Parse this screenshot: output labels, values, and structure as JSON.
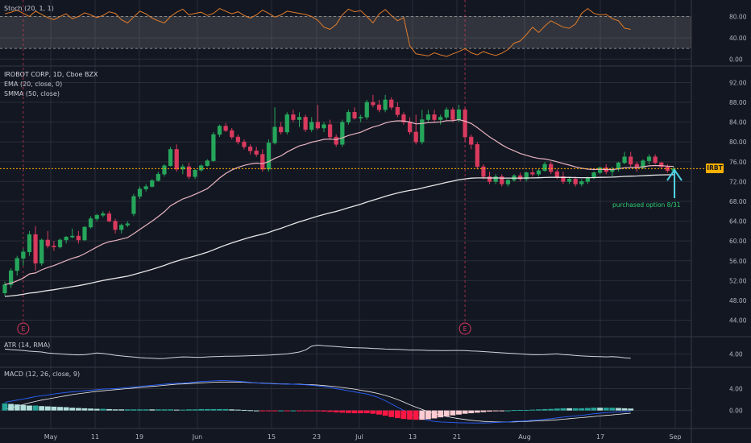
{
  "ticker_tag": "IRBT",
  "annotation": "purchased option 8/31",
  "panes": {
    "stoch_label": "Stoch (20, 1, 1)",
    "main_title": "IROBOT CORP, 1D, Cboe BZX",
    "ema_label": "EMA (20, close, 0)",
    "smma_label": "SMMA (50, close)",
    "atr_label": "ATR (14, RMA)",
    "macd_label": "MACD (12, 26, close, 9)"
  },
  "colors": {
    "background": "#131722",
    "grid": "#2a2e39",
    "up": "#26a65b",
    "down": "#d93a5e",
    "ema": "#e8b4c0",
    "smma": "#e6e6e6",
    "stoch": "#e07b2a",
    "atr": "#d1d4dc",
    "macd": "#2962ff",
    "signal": "#f0f0f0",
    "price_line": "#ffb000",
    "arrow": "#4dd0e1",
    "earnings": "#d93a5e"
  },
  "chart_data": {
    "type": "candlestick",
    "x_ticks": [
      "May",
      "11",
      "19",
      "Jun",
      "15",
      "23",
      "Jul",
      "13",
      "21",
      "Aug",
      "17",
      "Sep"
    ],
    "y_ticks": [
      44,
      48,
      52,
      56,
      60,
      64,
      68,
      72,
      76,
      80,
      84,
      88,
      92
    ],
    "ylim": [
      41,
      95
    ],
    "last_price": 74.6,
    "earnings_markers": [
      {
        "label": "E",
        "index": 3
      },
      {
        "label": "E",
        "index": 75
      }
    ],
    "ohlc": [
      [
        49.5,
        51.8,
        49.0,
        51.2
      ],
      [
        51.2,
        54.5,
        50.5,
        54.0
      ],
      [
        54.0,
        57.0,
        53.0,
        56.5
      ],
      [
        56.5,
        58.5,
        55.0,
        57.8
      ],
      [
        57.8,
        62.0,
        57.0,
        61.3
      ],
      [
        61.3,
        63.0,
        54.0,
        55.5
      ],
      [
        55.5,
        60.5,
        55.0,
        60.2
      ],
      [
        60.2,
        62.0,
        58.5,
        59.0
      ],
      [
        59.0,
        60.0,
        58.0,
        58.8
      ],
      [
        58.8,
        60.5,
        58.5,
        60.2
      ],
      [
        60.2,
        61.0,
        59.5,
        60.8
      ],
      [
        60.8,
        62.5,
        60.5,
        61.0
      ],
      [
        61.0,
        62.0,
        59.5,
        60.2
      ],
      [
        60.2,
        63.0,
        60.0,
        62.8
      ],
      [
        62.8,
        65.0,
        62.5,
        64.5
      ],
      [
        64.5,
        65.5,
        64.0,
        65.2
      ],
      [
        65.2,
        66.0,
        64.8,
        65.5
      ],
      [
        65.5,
        66.0,
        63.8,
        64.0
      ],
      [
        64.0,
        64.5,
        61.5,
        62.3
      ],
      [
        62.3,
        63.5,
        61.5,
        63.2
      ],
      [
        63.2,
        64.0,
        62.8,
        63.5
      ],
      [
        65.5,
        69.5,
        65.0,
        69.0
      ],
      [
        69.0,
        71.0,
        68.5,
        70.5
      ],
      [
        70.5,
        71.5,
        70.0,
        71.0
      ],
      [
        71.0,
        72.5,
        70.8,
        72.2
      ],
      [
        72.2,
        74.0,
        72.0,
        73.5
      ],
      [
        73.5,
        75.5,
        73.0,
        75.2
      ],
      [
        75.2,
        79.0,
        75.0,
        78.5
      ],
      [
        78.5,
        79.5,
        74.0,
        74.5
      ],
      [
        74.5,
        75.5,
        73.5,
        75.0
      ],
      [
        75.0,
        75.8,
        72.5,
        73.0
      ],
      [
        73.0,
        74.5,
        72.5,
        74.3
      ],
      [
        74.3,
        75.5,
        74.0,
        75.2
      ],
      [
        75.2,
        76.5,
        75.0,
        76.2
      ],
      [
        76.2,
        82.0,
        76.0,
        81.5
      ],
      [
        81.5,
        83.5,
        81.0,
        83.2
      ],
      [
        83.2,
        83.8,
        82.0,
        82.3
      ],
      [
        82.3,
        82.8,
        80.5,
        81.0
      ],
      [
        81.0,
        81.5,
        79.5,
        80.0
      ],
      [
        80.0,
        80.5,
        78.5,
        79.0
      ],
      [
        79.0,
        79.5,
        77.5,
        78.2
      ],
      [
        78.2,
        79.0,
        77.0,
        77.5
      ],
      [
        77.5,
        78.5,
        74.0,
        74.5
      ],
      [
        74.5,
        80.5,
        74.0,
        79.8
      ],
      [
        79.8,
        87.0,
        79.5,
        83.0
      ],
      [
        83.0,
        84.0,
        81.5,
        82.0
      ],
      [
        82.0,
        86.0,
        81.5,
        85.5
      ],
      [
        85.5,
        86.5,
        84.0,
        84.5
      ],
      [
        84.5,
        86.0,
        83.0,
        85.0
      ],
      [
        85.0,
        85.5,
        82.0,
        82.5
      ],
      [
        82.5,
        85.0,
        82.0,
        84.0
      ],
      [
        84.0,
        87.5,
        82.5,
        82.8
      ],
      [
        82.8,
        84.0,
        82.0,
        83.5
      ],
      [
        83.5,
        84.5,
        80.5,
        81.0
      ],
      [
        81.0,
        81.5,
        79.0,
        79.5
      ],
      [
        79.5,
        84.5,
        79.0,
        84.0
      ],
      [
        84.0,
        86.5,
        83.5,
        86.0
      ],
      [
        86.0,
        87.0,
        84.5,
        84.8
      ],
      [
        84.8,
        85.5,
        84.0,
        85.0
      ],
      [
        85.0,
        88.5,
        84.5,
        88.0
      ],
      [
        88.0,
        89.5,
        87.0,
        87.5
      ],
      [
        87.5,
        88.5,
        86.0,
        86.5
      ],
      [
        86.5,
        89.5,
        86.0,
        88.5
      ],
      [
        88.5,
        89.0,
        86.5,
        87.0
      ],
      [
        87.0,
        88.0,
        85.0,
        85.5
      ],
      [
        85.5,
        86.0,
        83.5,
        84.0
      ],
      [
        84.0,
        85.0,
        81.5,
        82.0
      ],
      [
        82.0,
        85.5,
        79.5,
        80.0
      ],
      [
        80.0,
        86.5,
        79.5,
        84.5
      ],
      [
        84.5,
        86.5,
        84.0,
        85.5
      ],
      [
        85.5,
        86.5,
        84.0,
        84.5
      ],
      [
        84.5,
        85.5,
        83.5,
        85.0
      ],
      [
        85.0,
        87.0,
        84.5,
        86.5
      ],
      [
        86.5,
        87.0,
        84.0,
        84.5
      ],
      [
        84.5,
        87.5,
        84.0,
        86.5
      ],
      [
        86.5,
        87.0,
        80.0,
        81.0
      ],
      [
        81.0,
        81.5,
        78.5,
        79.5
      ],
      [
        79.5,
        80.0,
        74.5,
        75.0
      ],
      [
        75.0,
        75.5,
        72.5,
        73.0
      ],
      [
        73.0,
        74.0,
        71.5,
        72.0
      ],
      [
        72.0,
        73.5,
        71.5,
        73.0
      ],
      [
        73.0,
        73.5,
        71.0,
        71.5
      ],
      [
        71.5,
        72.5,
        71.0,
        72.3
      ],
      [
        72.3,
        73.5,
        72.0,
        73.2
      ],
      [
        73.2,
        73.8,
        72.0,
        72.5
      ],
      [
        72.5,
        74.0,
        72.0,
        73.8
      ],
      [
        73.8,
        74.5,
        73.0,
        73.5
      ],
      [
        73.5,
        74.5,
        73.0,
        74.2
      ],
      [
        74.2,
        76.0,
        74.0,
        75.5
      ],
      [
        75.5,
        76.0,
        73.5,
        74.0
      ],
      [
        74.0,
        74.5,
        72.5,
        73.0
      ],
      [
        73.0,
        74.0,
        71.5,
        72.0
      ],
      [
        72.0,
        73.0,
        71.5,
        72.5
      ],
      [
        72.5,
        73.0,
        71.0,
        71.5
      ],
      [
        71.5,
        72.5,
        71.0,
        72.0
      ],
      [
        72.0,
        73.0,
        71.5,
        72.8
      ],
      [
        72.8,
        74.0,
        72.5,
        73.8
      ],
      [
        73.8,
        75.0,
        73.5,
        74.8
      ],
      [
        74.8,
        75.5,
        73.5,
        74.0
      ],
      [
        74.0,
        75.0,
        73.0,
        74.5
      ],
      [
        74.5,
        76.0,
        74.0,
        75.8
      ],
      [
        75.8,
        78.0,
        75.5,
        77.0
      ],
      [
        77.0,
        78.0,
        75.0,
        75.5
      ],
      [
        75.5,
        76.0,
        74.0,
        74.8
      ],
      [
        74.8,
        76.5,
        74.5,
        76.2
      ],
      [
        76.2,
        77.5,
        75.5,
        77.0
      ],
      [
        77.0,
        77.5,
        75.5,
        75.8
      ],
      [
        75.8,
        76.0,
        74.5,
        75.0
      ],
      [
        75.0,
        75.5,
        73.8,
        74.2
      ],
      [
        74.2,
        75.0,
        74.0,
        74.6
      ]
    ],
    "indicators": {
      "stoch_ticks": [
        0,
        40,
        80
      ],
      "stoch_ylim": [
        -10,
        105
      ],
      "stoch_band": [
        20,
        80
      ],
      "stoch": [
        85,
        88,
        92,
        86,
        80,
        90,
        84,
        78,
        74,
        80,
        85,
        76,
        80,
        87,
        83,
        78,
        82,
        89,
        86,
        74,
        68,
        79,
        90,
        85,
        77,
        72,
        68,
        80,
        88,
        94,
        83,
        86,
        88,
        82,
        86,
        95,
        90,
        85,
        89,
        82,
        77,
        83,
        92,
        86,
        79,
        83,
        90,
        88,
        86,
        84,
        80,
        73,
        60,
        56,
        65,
        83,
        94,
        89,
        91,
        80,
        68,
        85,
        93,
        82,
        72,
        78,
        25,
        10,
        8,
        6,
        12,
        8,
        5,
        10,
        14,
        20,
        12,
        8,
        14,
        10,
        7,
        11,
        18,
        30,
        34,
        46,
        60,
        50,
        62,
        72,
        66,
        60,
        58,
        66,
        86,
        95,
        86,
        83,
        84,
        76,
        72,
        58,
        56
      ],
      "atr_ticks": [
        4
      ],
      "atr_ylim": [
        3.4,
        4.8
      ],
      "atr": [
        4.25,
        4.22,
        4.2,
        4.18,
        4.14,
        4.12,
        4.1,
        4.05,
        4.02,
        4.0,
        3.98,
        3.96,
        3.95,
        3.96,
        4.0,
        4.05,
        4.02,
        3.98,
        3.93,
        3.9,
        3.87,
        3.84,
        3.81,
        3.79,
        3.78,
        3.76,
        3.77,
        3.8,
        3.83,
        3.85,
        3.84,
        3.83,
        3.83,
        3.85,
        3.86,
        3.87,
        3.88,
        3.88,
        3.89,
        3.9,
        3.91,
        3.92,
        3.93,
        3.94,
        3.96,
        3.98,
        4.0,
        4.05,
        4.1,
        4.2,
        4.4,
        4.45,
        4.42,
        4.4,
        4.38,
        4.35,
        4.33,
        4.32,
        4.31,
        4.3,
        4.28,
        4.27,
        4.25,
        4.24,
        4.23,
        4.22,
        4.2,
        4.2,
        4.19,
        4.18,
        4.18,
        4.17,
        4.17,
        4.18,
        4.18,
        4.17,
        4.15,
        4.14,
        4.12,
        4.1,
        4.08,
        4.06,
        4.04,
        4.02,
        4.0,
        3.98,
        3.96,
        3.96,
        3.97,
        3.99,
        4.0,
        3.97,
        3.95,
        3.92,
        3.9,
        3.88,
        3.87,
        3.86,
        3.85,
        3.86,
        3.84,
        3.8,
        3.78
      ],
      "macd_ticks": [
        0,
        4
      ],
      "macd_ylim": [
        -3.0,
        7.6
      ],
      "macd": [
        1.5,
        1.7,
        1.9,
        2.1,
        2.3,
        2.55,
        2.7,
        2.85,
        3.0,
        3.15,
        3.3,
        3.4,
        3.5,
        3.6,
        3.7,
        3.8,
        3.9,
        3.95,
        4.0,
        4.1,
        4.2,
        4.3,
        4.4,
        4.5,
        4.6,
        4.7,
        4.8,
        4.9,
        4.95,
        5.0,
        5.1,
        5.2,
        5.3,
        5.35,
        5.4,
        5.45,
        5.45,
        5.4,
        5.35,
        5.25,
        5.15,
        5.05,
        4.95,
        4.9,
        4.85,
        4.85,
        4.8,
        4.8,
        4.75,
        4.7,
        4.6,
        4.5,
        4.35,
        4.2,
        4.0,
        3.8,
        3.6,
        3.4,
        3.2,
        3.0,
        2.7,
        2.3,
        1.8,
        1.2,
        0.6,
        0.0,
        -0.6,
        -1.1,
        -1.5,
        -1.8,
        -2.0,
        -2.1,
        -2.15,
        -2.2,
        -2.25,
        -2.25,
        -2.3,
        -2.3,
        -2.3,
        -2.25,
        -2.2,
        -2.15,
        -2.1,
        -2.0,
        -1.95,
        -1.9,
        -1.8,
        -1.7,
        -1.6,
        -1.5,
        -1.35,
        -1.2,
        -1.1,
        -1.0,
        -0.9,
        -0.75,
        -0.6,
        -0.5,
        -0.4,
        -0.3,
        -0.25,
        -0.2,
        -0.15
      ],
      "signal": [
        0.2,
        0.5,
        0.8,
        1.1,
        1.4,
        1.65,
        1.9,
        2.1,
        2.3,
        2.5,
        2.7,
        2.9,
        3.05,
        3.2,
        3.35,
        3.5,
        3.6,
        3.7,
        3.8,
        3.9,
        4.0,
        4.1,
        4.2,
        4.3,
        4.4,
        4.5,
        4.6,
        4.7,
        4.8,
        4.85,
        4.9,
        5.0,
        5.05,
        5.1,
        5.15,
        5.2,
        5.2,
        5.2,
        5.2,
        5.15,
        5.1,
        5.05,
        5.0,
        4.95,
        4.9,
        4.85,
        4.85,
        4.8,
        4.8,
        4.75,
        4.7,
        4.65,
        4.55,
        4.45,
        4.35,
        4.2,
        4.05,
        3.9,
        3.7,
        3.5,
        3.3,
        3.05,
        2.75,
        2.4,
        2.0,
        1.55,
        1.05,
        0.6,
        0.2,
        -0.2,
        -0.55,
        -0.85,
        -1.1,
        -1.3,
        -1.5,
        -1.65,
        -1.8,
        -1.9,
        -2.0,
        -2.05,
        -2.1,
        -2.1,
        -2.1,
        -2.08,
        -2.05,
        -2.0,
        -1.95,
        -1.9,
        -1.85,
        -1.78,
        -1.7,
        -1.6,
        -1.5,
        -1.4,
        -1.3,
        -1.2,
        -1.1,
        -1.0,
        -0.9,
        -0.8,
        -0.7,
        -0.6,
        -0.5
      ]
    }
  }
}
